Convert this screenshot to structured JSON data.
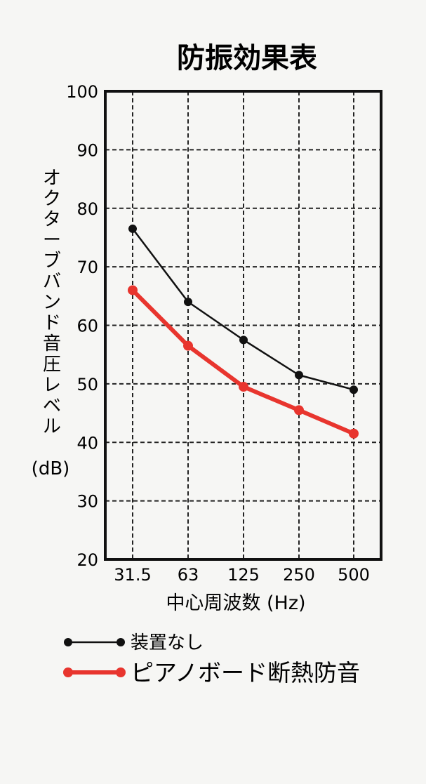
{
  "chart_data": {
    "type": "line",
    "title": "防振効果表",
    "xlabel": "中心周波数 (Hz)",
    "ylabel": [
      "オ",
      "ク",
      "タ",
      "ー",
      "ブ",
      "バ",
      "ン",
      "ド",
      "音",
      "圧",
      "レ",
      "ベ",
      "ル"
    ],
    "ylabel_unit": "(dB)",
    "categories": [
      "31.5",
      "63",
      "125",
      "250",
      "500"
    ],
    "ylim": [
      20,
      100
    ],
    "yticks": [
      "20",
      "30",
      "40",
      "50",
      "60",
      "70",
      "80",
      "90",
      "100"
    ],
    "grid": true,
    "legend_position": "bottom-left",
    "series": [
      {
        "name": "装置なし",
        "values": [
          76.5,
          64,
          57.5,
          51.5,
          49
        ],
        "color": "#111111"
      },
      {
        "name": "ピアノボード断熱防音",
        "values": [
          66,
          56.5,
          49.5,
          45.5,
          41.5
        ],
        "color": "#e8352e"
      }
    ]
  }
}
